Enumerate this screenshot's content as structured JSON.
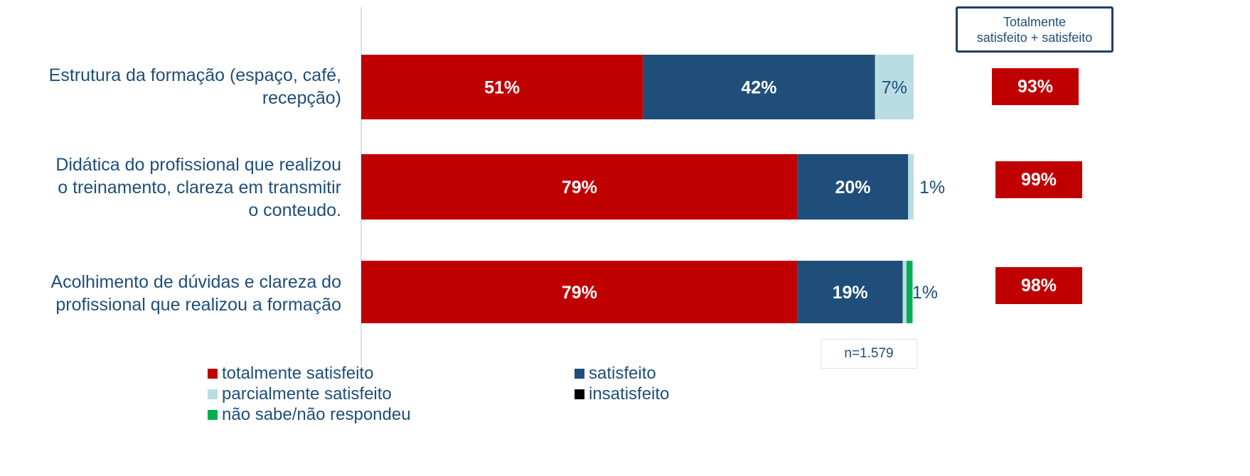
{
  "chart_data": {
    "type": "bar",
    "orientation": "horizontal",
    "stacked": true,
    "categories": [
      "Estrutura da formação (espaço, café, recepção)",
      "Didática do profissional que realizou o treinamento, clareza em transmitir o conteudo.",
      "Acolhimento de dúvidas e clareza do profissional que realizou a formação"
    ],
    "category_lines": [
      [
        "Estrutura da formação (espaço, café,",
        "recepção)"
      ],
      [
        "Didática do profissional que realizou",
        "o treinamento, clareza em transmitir",
        "o conteudo."
      ],
      [
        "Acolhimento de dúvidas e clareza do",
        "profissional que realizou a formação"
      ]
    ],
    "series": [
      {
        "name": "totalmente satisfeito",
        "color": "#c00000",
        "values": [
          51,
          79,
          79
        ],
        "labels": [
          "51%",
          "79%",
          "79%"
        ]
      },
      {
        "name": "satisfeito",
        "color": "#1f4e7a",
        "values": [
          42,
          20,
          19
        ],
        "labels": [
          "42%",
          "20%",
          "19%"
        ]
      },
      {
        "name": "parcialmente satisfeito",
        "color": "#b9dde3",
        "values": [
          7,
          1,
          0.7
        ],
        "labels": [
          "7%",
          "1%",
          "1%"
        ]
      },
      {
        "name": "insatisfeito",
        "color": "#000000",
        "values": [
          0,
          0,
          0
        ],
        "labels": [
          "",
          "",
          ""
        ]
      },
      {
        "name": "não sabe/não respondeu",
        "color": "#00b050",
        "values": [
          0,
          0,
          1.1
        ],
        "labels": [
          "",
          "",
          ""
        ]
      }
    ],
    "summary_header": [
      "Totalmente",
      "satisfeito + satisfeito"
    ],
    "summary_values": [
      "93%",
      "99%",
      "98%"
    ],
    "note": "n=1.579",
    "legend_position": "bottom",
    "grid": false,
    "xlim": [
      0,
      100
    ]
  }
}
